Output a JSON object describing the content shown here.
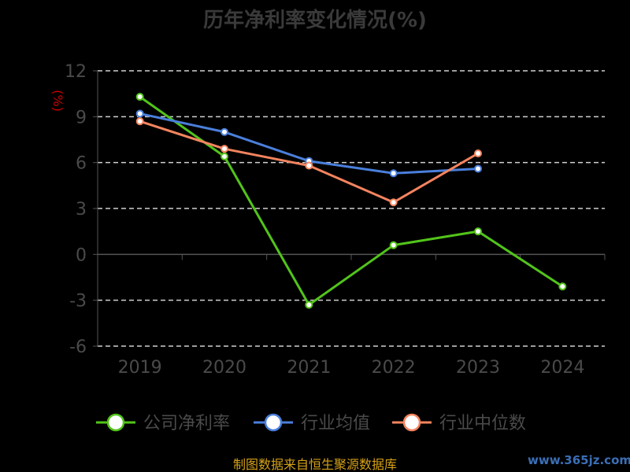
{
  "chart_data": {
    "type": "line",
    "title": "历年净利率变化情况(%)",
    "ylabel": "(%)",
    "categories": [
      "2019",
      "2020",
      "2021",
      "2022",
      "2023",
      "2024"
    ],
    "ylim": [
      -6,
      12
    ],
    "yticks": [
      12,
      9,
      6,
      3,
      0,
      -3,
      -6
    ],
    "grid": true,
    "legend_position": "bottom",
    "series": [
      {
        "name": "公司净利率",
        "color": "#52c41a",
        "values": [
          10.3,
          6.4,
          -3.3,
          0.6,
          1.5,
          -2.1
        ]
      },
      {
        "name": "行业均值",
        "color": "#4a7fdc",
        "values": [
          9.2,
          8.0,
          6.1,
          5.3,
          5.6,
          null
        ]
      },
      {
        "name": "行业中位数",
        "color": "#f4845f",
        "values": [
          8.7,
          6.9,
          5.8,
          3.4,
          6.6,
          null
        ]
      }
    ]
  },
  "footer": {
    "source": "制图数据来自恒生聚源数据库",
    "watermark": "www.365jz.com"
  }
}
